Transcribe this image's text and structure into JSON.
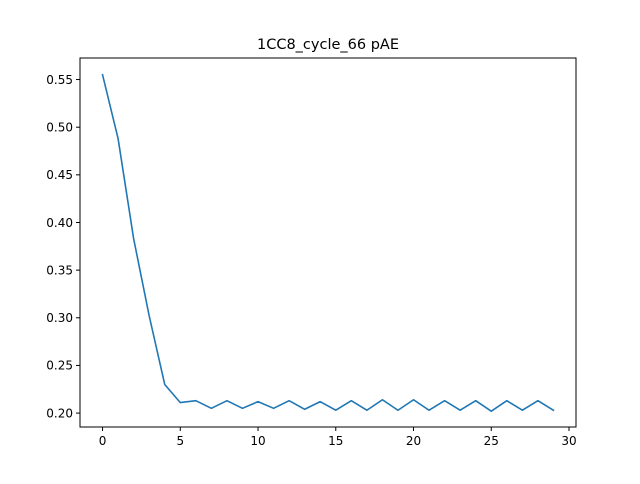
{
  "chart_data": {
    "type": "line",
    "title": "1CC8_cycle_66 pAE",
    "xlabel": "",
    "ylabel": "",
    "xlim": [
      -1.45,
      30.45
    ],
    "ylim": [
      0.1854,
      0.5726
    ],
    "x_ticks": [
      0,
      5,
      10,
      15,
      20,
      25,
      30
    ],
    "x_tick_labels": [
      "0",
      "5",
      "10",
      "15",
      "20",
      "25",
      "30"
    ],
    "y_ticks": [
      0.2,
      0.25,
      0.3,
      0.35,
      0.4,
      0.45,
      0.5,
      0.55
    ],
    "y_tick_labels": [
      "0.20",
      "0.25",
      "0.30",
      "0.35",
      "0.40",
      "0.45",
      "0.50",
      "0.55"
    ],
    "grid": false,
    "legend": "none",
    "series": [
      {
        "color": "#1f77b4",
        "x": [
          0,
          1,
          2,
          3,
          4,
          5,
          6,
          7,
          8,
          9,
          10,
          11,
          12,
          13,
          14,
          15,
          16,
          17,
          18,
          19,
          20,
          21,
          22,
          23,
          24,
          25,
          26,
          27,
          28,
          29
        ],
        "values": [
          0.555,
          0.488,
          0.383,
          0.302,
          0.23,
          0.211,
          0.213,
          0.205,
          0.213,
          0.205,
          0.212,
          0.205,
          0.213,
          0.204,
          0.212,
          0.203,
          0.213,
          0.203,
          0.214,
          0.203,
          0.214,
          0.203,
          0.213,
          0.203,
          0.213,
          0.202,
          0.213,
          0.203,
          0.213,
          0.203
        ]
      }
    ]
  }
}
